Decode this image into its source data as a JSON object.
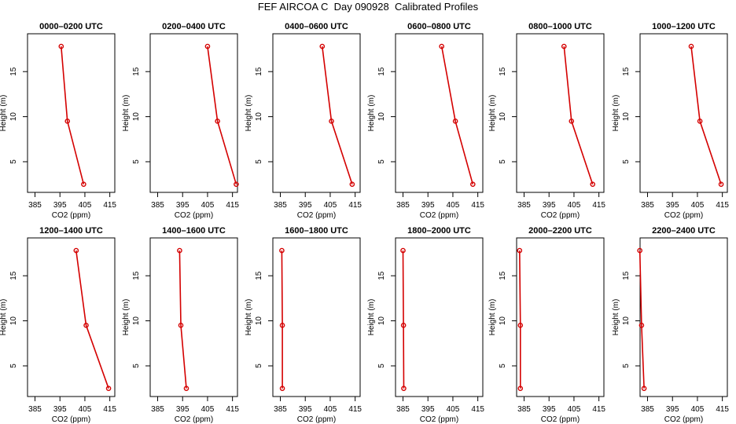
{
  "title": "FEF AIRCOA C  Day 090928  Calibrated Profiles",
  "style": {
    "series_color": "#d40000",
    "frame_color": "#000000"
  },
  "chart_data": [
    {
      "type": "line",
      "title": "0000–0200 UTC",
      "xlabel": "CO2 (ppm)",
      "ylabel": "Height (m)",
      "xlim": [
        382,
        417
      ],
      "ylim": [
        1.6,
        19.2
      ],
      "xticks": [
        385,
        395,
        405,
        415
      ],
      "yticks": [
        5,
        10,
        15
      ],
      "series": [
        {
          "name": "CO2 profile",
          "points": [
            {
              "x": 404.5,
              "y": 2.5
            },
            {
              "x": 398,
              "y": 9.5
            },
            {
              "x": 395.5,
              "y": 17.8
            }
          ]
        }
      ]
    },
    {
      "type": "line",
      "title": "0200–0400 UTC",
      "xlabel": "CO2 (ppm)",
      "ylabel": "Height (m)",
      "xlim": [
        382,
        417
      ],
      "ylim": [
        1.6,
        19.2
      ],
      "xticks": [
        385,
        395,
        405,
        415
      ],
      "yticks": [
        5,
        10,
        15
      ],
      "series": [
        {
          "name": "CO2 profile",
          "points": [
            {
              "x": 416.5,
              "y": 2.5
            },
            {
              "x": 409,
              "y": 9.5
            },
            {
              "x": 405,
              "y": 17.8
            }
          ]
        }
      ]
    },
    {
      "type": "line",
      "title": "0400–0600 UTC",
      "xlabel": "CO2 (ppm)",
      "ylabel": "Height (m)",
      "xlim": [
        382,
        417
      ],
      "ylim": [
        1.6,
        19.2
      ],
      "xticks": [
        385,
        395,
        405,
        415
      ],
      "yticks": [
        5,
        10,
        15
      ],
      "series": [
        {
          "name": "CO2 profile",
          "points": [
            {
              "x": 413.8,
              "y": 2.5
            },
            {
              "x": 405.5,
              "y": 9.5
            },
            {
              "x": 401.8,
              "y": 17.8
            }
          ]
        }
      ]
    },
    {
      "type": "line",
      "title": "0600–0800 UTC",
      "xlabel": "CO2 (ppm)",
      "ylabel": "Height (m)",
      "xlim": [
        382,
        417
      ],
      "ylim": [
        1.6,
        19.2
      ],
      "xticks": [
        385,
        395,
        405,
        415
      ],
      "yticks": [
        5,
        10,
        15
      ],
      "series": [
        {
          "name": "CO2 profile",
          "points": [
            {
              "x": 413,
              "y": 2.5
            },
            {
              "x": 406,
              "y": 9.5
            },
            {
              "x": 400.5,
              "y": 17.8
            }
          ]
        }
      ]
    },
    {
      "type": "line",
      "title": "0800–1000 UTC",
      "xlabel": "CO2 (ppm)",
      "ylabel": "Height (m)",
      "xlim": [
        382,
        417
      ],
      "ylim": [
        1.6,
        19.2
      ],
      "xticks": [
        385,
        395,
        405,
        415
      ],
      "yticks": [
        5,
        10,
        15
      ],
      "series": [
        {
          "name": "CO2 profile",
          "points": [
            {
              "x": 412.5,
              "y": 2.5
            },
            {
              "x": 404,
              "y": 9.5
            },
            {
              "x": 401,
              "y": 17.8
            }
          ]
        }
      ]
    },
    {
      "type": "line",
      "title": "1000–1200 UTC",
      "xlabel": "CO2 (ppm)",
      "ylabel": "Height (m)",
      "xlim": [
        382,
        417
      ],
      "ylim": [
        1.6,
        19.2
      ],
      "xticks": [
        385,
        395,
        405,
        415
      ],
      "yticks": [
        5,
        10,
        15
      ],
      "series": [
        {
          "name": "CO2 profile",
          "points": [
            {
              "x": 414.5,
              "y": 2.5
            },
            {
              "x": 406,
              "y": 9.5
            },
            {
              "x": 402.5,
              "y": 17.8
            }
          ]
        }
      ]
    },
    {
      "type": "line",
      "title": "1200–1400 UTC",
      "xlabel": "CO2 (ppm)",
      "ylabel": "Height (m)",
      "xlim": [
        382,
        417
      ],
      "ylim": [
        1.6,
        19.2
      ],
      "xticks": [
        385,
        395,
        405,
        415
      ],
      "yticks": [
        5,
        10,
        15
      ],
      "series": [
        {
          "name": "CO2 profile",
          "points": [
            {
              "x": 414.5,
              "y": 2.5
            },
            {
              "x": 405.5,
              "y": 9.5
            },
            {
              "x": 401.5,
              "y": 17.8
            }
          ]
        }
      ]
    },
    {
      "type": "line",
      "title": "1400–1600 UTC",
      "xlabel": "CO2 (ppm)",
      "ylabel": "Height (m)",
      "xlim": [
        382,
        417
      ],
      "ylim": [
        1.6,
        19.2
      ],
      "xticks": [
        385,
        395,
        405,
        415
      ],
      "yticks": [
        5,
        10,
        15
      ],
      "series": [
        {
          "name": "CO2 profile",
          "points": [
            {
              "x": 396.5,
              "y": 2.5
            },
            {
              "x": 394.3,
              "y": 9.5
            },
            {
              "x": 393.8,
              "y": 17.8
            }
          ]
        }
      ]
    },
    {
      "type": "line",
      "title": "1600–1800 UTC",
      "xlabel": "CO2 (ppm)",
      "ylabel": "Height (m)",
      "xlim": [
        382,
        417
      ],
      "ylim": [
        1.6,
        19.2
      ],
      "xticks": [
        385,
        395,
        405,
        415
      ],
      "yticks": [
        5,
        10,
        15
      ],
      "series": [
        {
          "name": "CO2 profile",
          "points": [
            {
              "x": 385.8,
              "y": 2.5
            },
            {
              "x": 385.8,
              "y": 9.5
            },
            {
              "x": 385.6,
              "y": 17.8
            }
          ]
        }
      ]
    },
    {
      "type": "line",
      "title": "1800–2000 UTC",
      "xlabel": "CO2 (ppm)",
      "ylabel": "Height (m)",
      "xlim": [
        382,
        417
      ],
      "ylim": [
        1.6,
        19.2
      ],
      "xticks": [
        385,
        395,
        405,
        415
      ],
      "yticks": [
        5,
        10,
        15
      ],
      "series": [
        {
          "name": "CO2 profile",
          "points": [
            {
              "x": 385.3,
              "y": 2.5
            },
            {
              "x": 385.2,
              "y": 9.5
            },
            {
              "x": 385.0,
              "y": 17.8
            }
          ]
        }
      ]
    },
    {
      "type": "line",
      "title": "2000–2200 UTC",
      "xlabel": "CO2 (ppm)",
      "ylabel": "Height (m)",
      "xlim": [
        382,
        417
      ],
      "ylim": [
        1.6,
        19.2
      ],
      "xticks": [
        385,
        395,
        405,
        415
      ],
      "yticks": [
        5,
        10,
        15
      ],
      "series": [
        {
          "name": "CO2 profile",
          "points": [
            {
              "x": 383.5,
              "y": 2.5
            },
            {
              "x": 383.5,
              "y": 9.5
            },
            {
              "x": 383.2,
              "y": 17.8
            }
          ]
        }
      ]
    },
    {
      "type": "line",
      "title": "2200–2400 UTC",
      "xlabel": "CO2 (ppm)",
      "ylabel": "Height (m)",
      "xlim": [
        382,
        417
      ],
      "ylim": [
        1.6,
        19.2
      ],
      "xticks": [
        385,
        395,
        405,
        415
      ],
      "yticks": [
        5,
        10,
        15
      ],
      "series": [
        {
          "name": "CO2 profile",
          "points": [
            {
              "x": 383.6,
              "y": 2.5
            },
            {
              "x": 382.6,
              "y": 9.5
            },
            {
              "x": 381.9,
              "y": 17.8
            }
          ]
        }
      ]
    }
  ]
}
